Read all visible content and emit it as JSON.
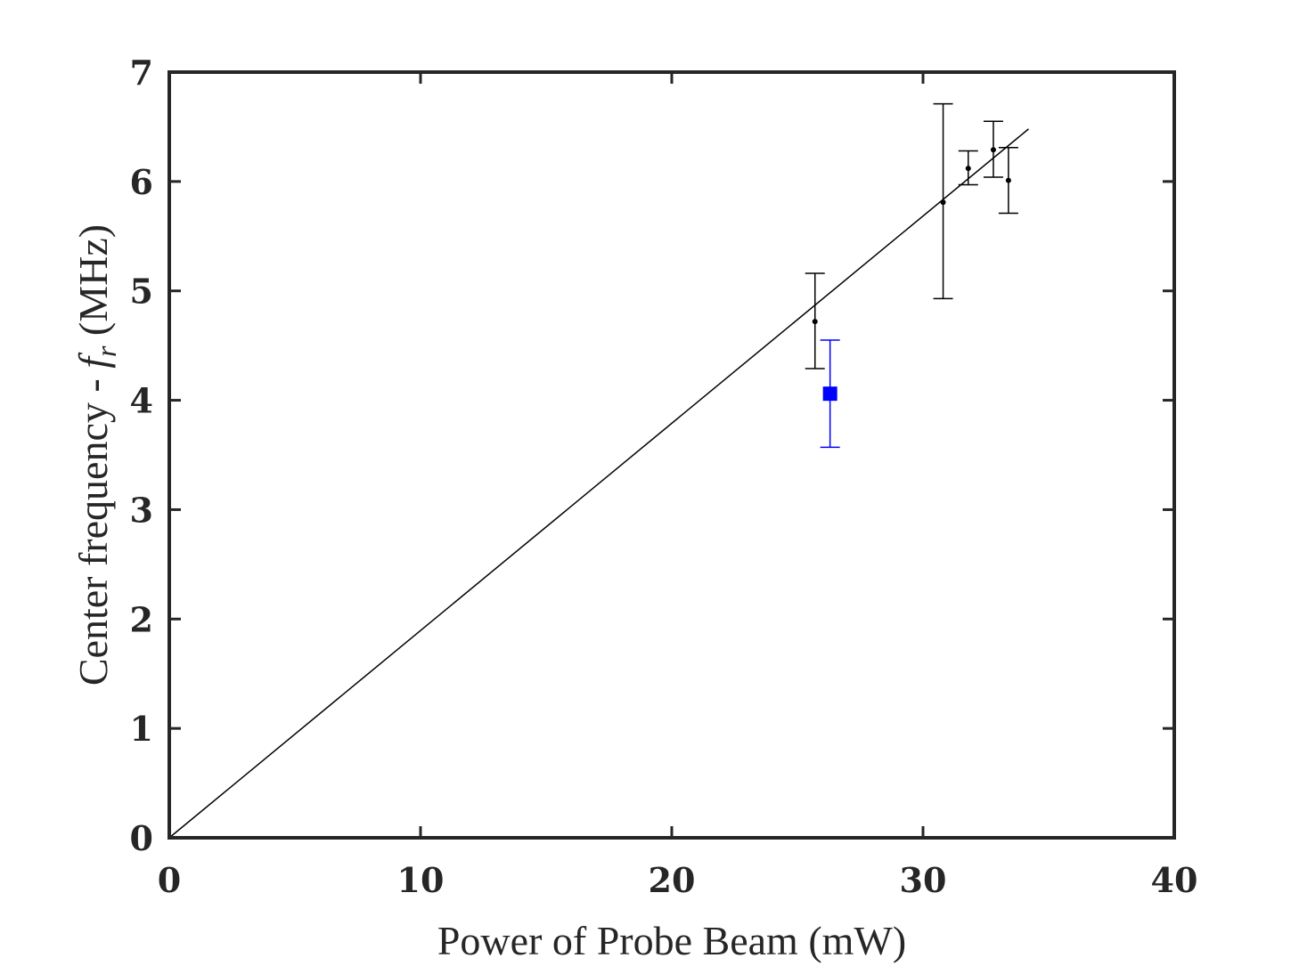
{
  "chart_data": {
    "type": "scatter",
    "title": "",
    "xlabel": "Power of Probe Beam (mW)",
    "ylabel": {
      "prefix": "Center frequency - ",
      "symbol": "f",
      "subscript": "r",
      "suffix": " (MHz)"
    },
    "xlim": [
      0,
      40
    ],
    "ylim": [
      0,
      7
    ],
    "x_ticks": [
      0,
      10,
      20,
      30,
      40
    ],
    "y_ticks": [
      0,
      1,
      2,
      3,
      4,
      5,
      6,
      7
    ],
    "grid": false,
    "legend": "none",
    "series": [
      {
        "color": "#000000",
        "marker": "dot",
        "x": [
          25.7,
          30.8,
          31.8,
          32.8,
          33.4
        ],
        "y": [
          4.72,
          5.81,
          6.12,
          6.29,
          6.01
        ],
        "y_err_low": [
          4.29,
          4.93,
          5.97,
          6.04,
          5.71
        ],
        "y_err_high": [
          5.16,
          6.71,
          6.28,
          6.55,
          6.31
        ]
      },
      {
        "color": "#0000ff",
        "marker": "square",
        "x": [
          26.3
        ],
        "y": [
          4.06
        ],
        "y_err_low": [
          3.57
        ],
        "y_err_high": [
          4.55
        ]
      }
    ],
    "fit_line": {
      "color": "#000000",
      "x": [
        0,
        34.2
      ],
      "y": [
        0,
        6.48
      ]
    }
  }
}
